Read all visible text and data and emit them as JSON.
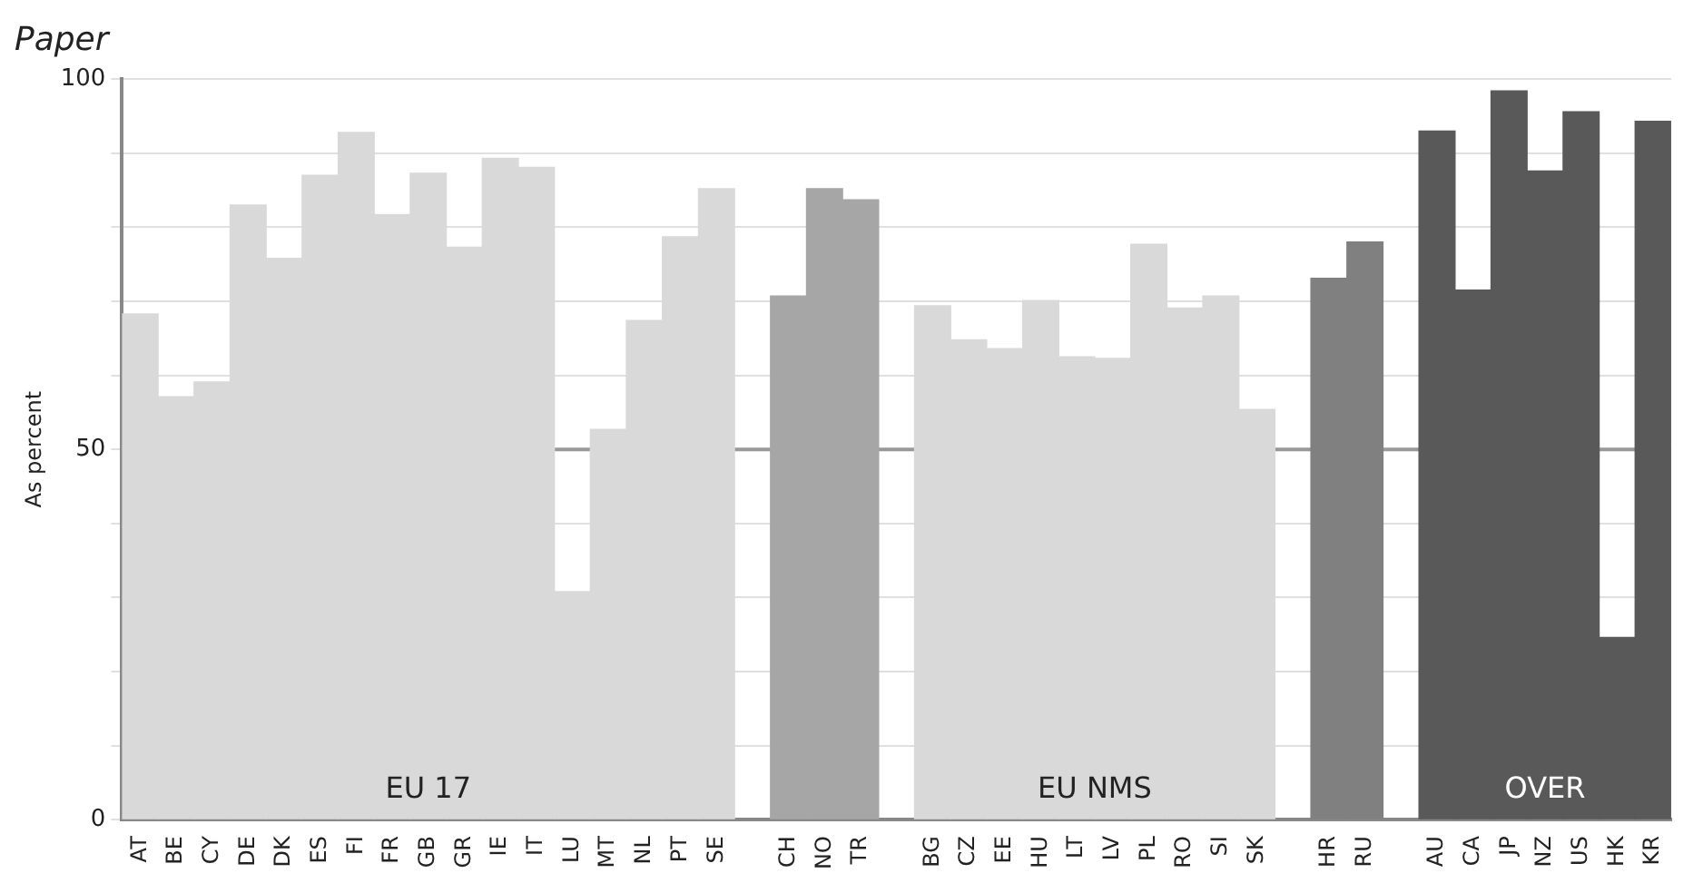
{
  "chart_data": {
    "type": "bar",
    "title": "Paper",
    "ylabel": "As percent",
    "categories": [
      "AT",
      "BE",
      "CY",
      "DE",
      "DK",
      "ES",
      "FI",
      "FR",
      "GB",
      "GR",
      "IE",
      "IT",
      "LU",
      "MT",
      "NL",
      "PT",
      "SE",
      null,
      "CH",
      "NO",
      "TR",
      null,
      "BG",
      "CZ",
      "EE",
      "HU",
      "LT",
      "LV",
      "PL",
      "RO",
      "SI",
      "SK",
      null,
      "HR",
      "RU",
      null,
      "AU",
      "CA",
      "JP",
      "NZ",
      "US",
      "HK",
      "KR"
    ],
    "values": [
      68.3,
      57.1,
      59.1,
      83.0,
      75.8,
      87.0,
      92.8,
      81.7,
      87.3,
      77.3,
      89.3,
      88.1,
      30.8,
      52.7,
      67.4,
      78.7,
      85.2,
      null,
      70.7,
      85.2,
      83.7,
      null,
      69.4,
      64.8,
      63.6,
      70.1,
      62.5,
      62.3,
      77.7,
      69.1,
      70.7,
      55.4,
      null,
      73.1,
      78.0,
      null,
      93.0,
      71.5,
      98.4,
      87.6,
      95.6,
      24.6,
      94.3
    ],
    "colors": [
      "#d9d9d9",
      "#d9d9d9",
      "#d9d9d9",
      "#d9d9d9",
      "#d9d9d9",
      "#d9d9d9",
      "#d9d9d9",
      "#d9d9d9",
      "#d9d9d9",
      "#d9d9d9",
      "#d9d9d9",
      "#d9d9d9",
      "#d9d9d9",
      "#d9d9d9",
      "#d9d9d9",
      "#d9d9d9",
      "#d9d9d9",
      null,
      "#a6a6a6",
      "#a6a6a6",
      "#a6a6a6",
      null,
      "#d9d9d9",
      "#d9d9d9",
      "#d9d9d9",
      "#d9d9d9",
      "#d9d9d9",
      "#d9d9d9",
      "#d9d9d9",
      "#d9d9d9",
      "#d9d9d9",
      "#d9d9d9",
      null,
      "#808080",
      "#808080",
      null,
      "#595959",
      "#595959",
      "#595959",
      "#595959",
      "#595959",
      "#595959",
      "#595959"
    ],
    "ylim": [
      0,
      100
    ],
    "yticks": [
      0,
      {
        "value": 10,
        "label": null
      },
      {
        "value": 20,
        "label": null
      },
      {
        "value": 30,
        "label": null
      },
      {
        "value": 40,
        "label": null
      },
      50,
      {
        "value": 60,
        "label": null
      },
      {
        "value": 70,
        "label": null
      },
      {
        "value": 80,
        "label": null
      },
      {
        "value": 90,
        "label": null
      },
      100
    ],
    "grid": "y",
    "legend": false,
    "ref_lines": [
      {
        "axis": "y",
        "value": 50,
        "color": "#999999"
      }
    ],
    "annotations": [
      "EU 17",
      "EU NMS",
      "OVER"
    ]
  }
}
